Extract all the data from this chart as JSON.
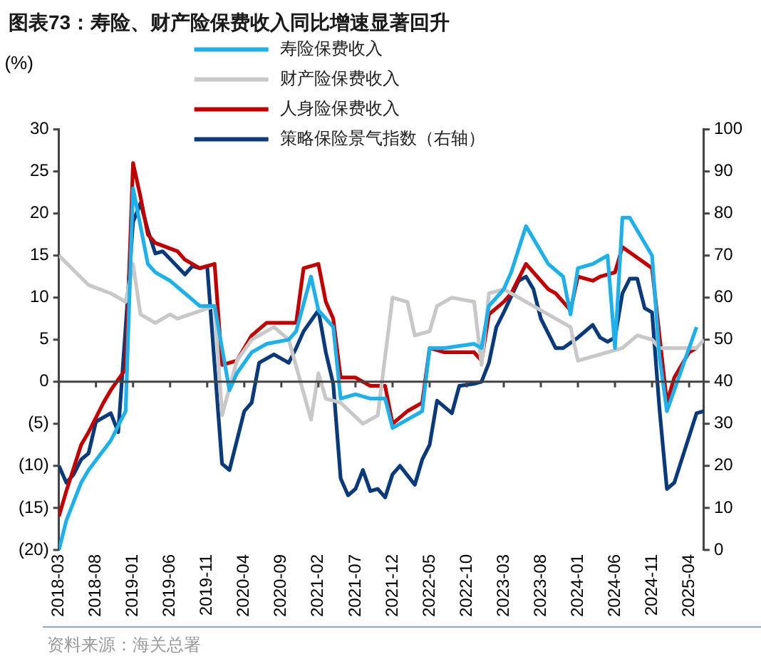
{
  "chart_data": {
    "type": "line",
    "title": "图表73：寿险、财产险保费收入同比增速显著回升",
    "ylabel": "(%)",
    "legend": "top",
    "grid": false,
    "marker": "none",
    "line_style": "solid",
    "xlim": [
      "2018-03",
      "2025-06"
    ],
    "xticks": [
      "2018-03",
      "2018-08",
      "2019-01",
      "2019-06",
      "2019-11",
      "2020-04",
      "2020-09",
      "2021-02",
      "2021-07",
      "2021-12",
      "2022-05",
      "2022-10",
      "2023-03",
      "2023-08",
      "2024-01",
      "2024-06",
      "2024-11",
      "2025-04"
    ],
    "ylim": [
      -20,
      30
    ],
    "yticks": [
      {
        "value": -20,
        "label": "(20)"
      },
      {
        "value": -15,
        "label": "(15)"
      },
      {
        "value": -10,
        "label": "(10)"
      },
      {
        "value": -5,
        "label": "(5)"
      },
      0,
      5,
      10,
      15,
      20,
      25,
      30
    ],
    "y2lim": [
      0,
      100
    ],
    "y2ticks": [
      0,
      10,
      20,
      30,
      40,
      50,
      60,
      70,
      80,
      90,
      100
    ],
    "series": [
      {
        "name": "寿险保费收入",
        "color": "#1fb0ea",
        "x": [
          "2018-03",
          "2018-04",
          "2018-06",
          "2018-07",
          "2018-10",
          "2018-12",
          "2019-01",
          "2019-03",
          "2019-04",
          "2019-06",
          "2019-08",
          "2019-10",
          "2019-12",
          "2020-02",
          "2020-03",
          "2020-05",
          "2020-07",
          "2020-10",
          "2020-11",
          "2021-01",
          "2021-02",
          "2021-04",
          "2021-05",
          "2021-07",
          "2021-09",
          "2021-11",
          "2021-12",
          "2022-02",
          "2022-04",
          "2022-05",
          "2022-07",
          "2022-11",
          "2022-12",
          "2023-01",
          "2023-03",
          "2023-04",
          "2023-06",
          "2023-09",
          "2023-11",
          "2023-12",
          "2024-01",
          "2024-03",
          "2024-05",
          "2024-06",
          "2024-07",
          "2024-08",
          "2024-11",
          "2024-12",
          "2025-01",
          "2025-02",
          "2025-05"
        ],
        "values": [
          -20,
          -16.5,
          -12,
          -10.5,
          -7,
          -3.5,
          23,
          14,
          13,
          12,
          10.5,
          9,
          9,
          -1,
          1,
          3.5,
          4.5,
          5,
          6,
          12.5,
          8.5,
          6.5,
          -2,
          -1.5,
          -2,
          -2,
          -5.5,
          -4.5,
          -3.5,
          4,
          4,
          4.5,
          4,
          9,
          11,
          13,
          18.5,
          14,
          12.5,
          8,
          13.5,
          14,
          15,
          4,
          19.5,
          19.5,
          15,
          3,
          -3.5,
          -1,
          6.5
        ]
      },
      {
        "name": "财产险保费收入",
        "color": "#c8c8c8",
        "x": [
          "2018-03",
          "2018-07",
          "2018-10",
          "2018-12",
          "2019-01",
          "2019-02",
          "2019-04",
          "2019-06",
          "2019-07",
          "2019-12",
          "2020-01",
          "2020-03",
          "2020-05",
          "2020-08",
          "2020-10",
          "2021-01",
          "2021-02",
          "2021-03",
          "2021-05",
          "2021-08",
          "2021-10",
          "2021-12",
          "2022-02",
          "2022-03",
          "2022-05",
          "2022-06",
          "2022-08",
          "2022-11",
          "2022-12",
          "2023-01",
          "2023-03",
          "2023-05",
          "2023-08",
          "2023-10",
          "2023-12",
          "2024-01",
          "2024-05",
          "2024-07",
          "2024-09",
          "2024-11",
          "2024-12",
          "2025-05",
          "2025-06"
        ],
        "values": [
          15,
          11.5,
          10.5,
          9.5,
          14,
          8,
          7,
          8,
          7.5,
          9,
          -4,
          2.5,
          5,
          6.5,
          5,
          -4.5,
          1,
          -2,
          -2.5,
          -5,
          -4,
          10,
          9.5,
          5.5,
          6,
          9,
          10,
          9.5,
          2,
          10.5,
          11,
          10,
          8.5,
          7.5,
          6.5,
          2.5,
          3.5,
          4,
          5.5,
          5,
          4,
          4,
          5
        ]
      },
      {
        "name": "人身险保费收入",
        "color": "#c00000",
        "x": [
          "2018-03",
          "2018-04",
          "2018-06",
          "2018-07",
          "2018-09",
          "2018-10",
          "2018-12",
          "2019-01",
          "2019-02",
          "2019-03",
          "2019-04",
          "2019-07",
          "2019-08",
          "2019-10",
          "2019-12",
          "2020-01",
          "2020-03",
          "2020-05",
          "2020-07",
          "2020-11",
          "2020-12",
          "2021-02",
          "2021-03",
          "2021-04",
          "2021-05",
          "2021-07",
          "2021-09",
          "2021-11",
          "2021-12",
          "2022-02",
          "2022-04",
          "2022-05",
          "2022-07",
          "2022-11",
          "2022-12",
          "2023-01",
          "2023-03",
          "2023-04",
          "2023-06",
          "2023-09",
          "2023-10",
          "2023-12",
          "2024-01",
          "2024-03",
          "2024-04",
          "2024-06",
          "2024-07",
          "2024-11",
          "2025-01",
          "2025-02",
          "2025-04",
          "2025-05"
        ],
        "values": [
          -16,
          -13,
          -7.5,
          -6,
          -2.5,
          -1,
          1.5,
          26,
          22,
          17.5,
          16.5,
          15.5,
          14.5,
          13.5,
          14,
          2,
          2.5,
          5.5,
          7,
          7,
          13.5,
          14,
          9.5,
          7.5,
          0.5,
          0.5,
          -0.5,
          -0.5,
          -5,
          -3.5,
          -2.5,
          4,
          3.5,
          3.5,
          2.5,
          8,
          9.5,
          10.5,
          14,
          11,
          10.5,
          8.5,
          12.5,
          12,
          12.5,
          13,
          16,
          13.5,
          -2.5,
          0.5,
          3.5,
          4
        ]
      },
      {
        "name": "策略保险景气指数（右轴）",
        "color": "#0a3a7a",
        "axis": "y2",
        "x": [
          "2018-03",
          "2018-04",
          "2018-05",
          "2018-06",
          "2018-07",
          "2018-08",
          "2018-10",
          "2018-11",
          "2019-01",
          "2019-02",
          "2019-03",
          "2019-04",
          "2019-05",
          "2019-08",
          "2019-09",
          "2019-10",
          "2019-11",
          "2020-01",
          "2020-02",
          "2020-04",
          "2020-05",
          "2020-06",
          "2020-08",
          "2020-10",
          "2020-11",
          "2020-12",
          "2021-02",
          "2021-03",
          "2021-04",
          "2021-05",
          "2021-06",
          "2021-07",
          "2021-08",
          "2021-09",
          "2021-10",
          "2021-11",
          "2021-12",
          "2022-01",
          "2022-03",
          "2022-04",
          "2022-05",
          "2022-06",
          "2022-08",
          "2022-09",
          "2022-11",
          "2022-12",
          "2023-01",
          "2023-02",
          "2023-03",
          "2023-05",
          "2023-06",
          "2023-07",
          "2023-08",
          "2023-10",
          "2023-11",
          "2024-01",
          "2024-03",
          "2024-04",
          "2024-05",
          "2024-06",
          "2024-07",
          "2024-08",
          "2024-09",
          "2024-10",
          "2024-11",
          "2024-12",
          "2025-01",
          "2025-02",
          "2025-05",
          "2025-06"
        ],
        "values": [
          20,
          16,
          18,
          21.5,
          23,
          30.5,
          32.5,
          28,
          78,
          82.5,
          76,
          70.5,
          71,
          65.5,
          67.5,
          67,
          67.5,
          20.5,
          19,
          33,
          35,
          44.5,
          46.5,
          44.5,
          48,
          52,
          57,
          47,
          39.5,
          17,
          13,
          14.5,
          19,
          14,
          14.5,
          12.5,
          18,
          20,
          15.5,
          21.5,
          25,
          35.5,
          32.5,
          39,
          39.5,
          40,
          44.5,
          53,
          56.5,
          64,
          65,
          62,
          55,
          48,
          48,
          50.5,
          53.5,
          50.5,
          49.5,
          50.5,
          61,
          64.5,
          64.5,
          57.5,
          56.5,
          33.5,
          14.5,
          16,
          32.5,
          33
        ]
      }
    ],
    "ref_lines": [
      {
        "axis": "y",
        "value": 0,
        "color": "#444444"
      }
    ],
    "annotations": [
      "资料来源：海关总署"
    ]
  }
}
